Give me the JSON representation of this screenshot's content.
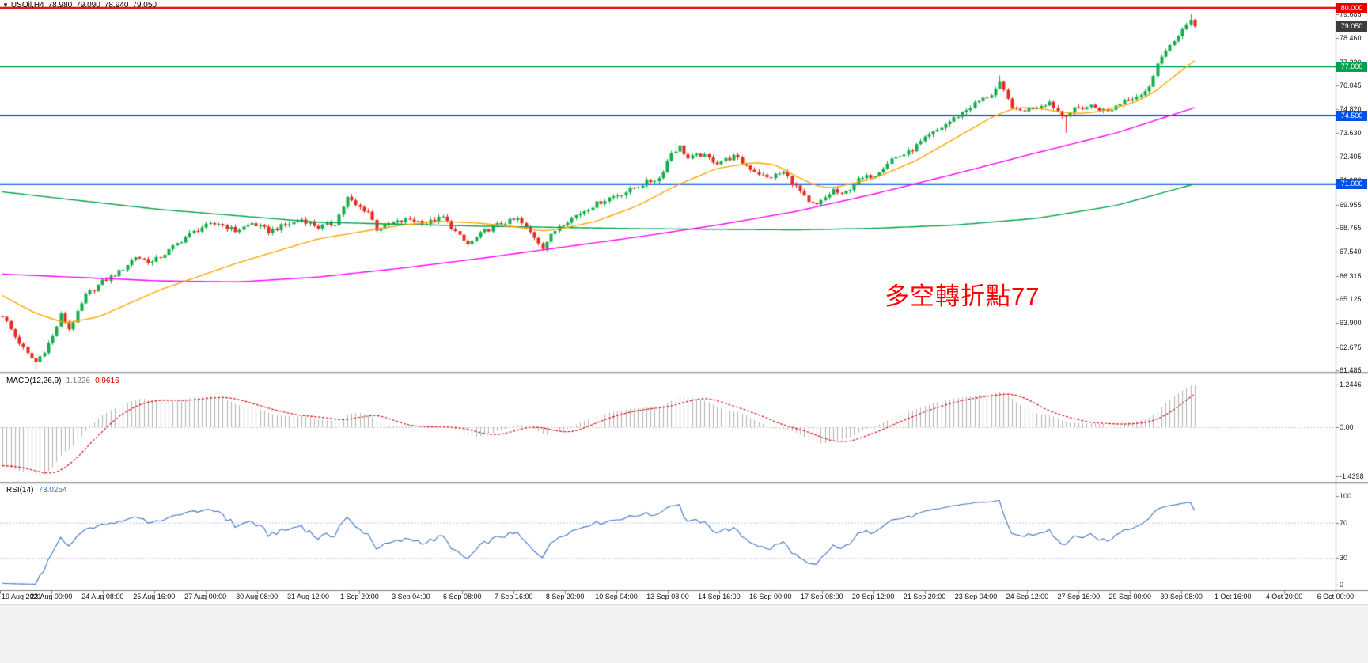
{
  "main_chart": {
    "title": {
      "collapse_icon": "▼",
      "symbol": "USOil,H4",
      "open": "78.980",
      "high": "79.090",
      "low": "78.940",
      "close": "79.050"
    },
    "annotation": {
      "text": "多空轉折點77",
      "color": "#ff0000"
    },
    "axis_labels": [
      {
        "text": "79.685",
        "price": 79.685
      },
      {
        "text": "78.460",
        "price": 78.46
      },
      {
        "text": "77.230",
        "price": 77.23
      },
      {
        "text": "76.045",
        "price": 76.045
      },
      {
        "text": "74.820",
        "price": 74.82
      },
      {
        "text": "73.630",
        "price": 73.63
      },
      {
        "text": "72.405",
        "price": 72.405
      },
      {
        "text": "71.180",
        "price": 71.18
      },
      {
        "text": "69.955",
        "price": 69.955
      },
      {
        "text": "68.765",
        "price": 68.765
      },
      {
        "text": "67.540",
        "price": 67.54
      },
      {
        "text": "66.315",
        "price": 66.315
      },
      {
        "text": "65.125",
        "price": 65.125
      },
      {
        "text": "63.900",
        "price": 63.9
      },
      {
        "text": "62.675",
        "price": 62.675
      },
      {
        "text": "61.485",
        "price": 61.485
      }
    ],
    "badges": [
      {
        "text": "80.000",
        "price": 80.0,
        "color": "#e60000"
      },
      {
        "text": "79.050",
        "price": 79.05,
        "color": "#3c3c3c"
      },
      {
        "text": "77.000",
        "price": 77.0,
        "color": "#00a24a"
      },
      {
        "text": "74.500",
        "price": 74.5,
        "color": "#0051e6"
      },
      {
        "text": "71.000",
        "price": 71.0,
        "color": "#0051e6"
      }
    ]
  },
  "macd_panel": {
    "name": "MACD(12,26,9)",
    "value_main": "1.1226",
    "value_signal": "0.9616",
    "axis": [
      {
        "text": "1.2446",
        "value": 1.2446
      },
      {
        "text": "0.00",
        "value": 0
      },
      {
        "text": "-1.4398",
        "value": -1.4398
      }
    ]
  },
  "rsi_panel": {
    "name": "RSI(14)",
    "value": "73.0254",
    "axis": [
      {
        "text": "100",
        "value": 100
      },
      {
        "text": "70",
        "value": 70
      },
      {
        "text": "30",
        "value": 30
      },
      {
        "text": "0",
        "value": 0
      }
    ]
  },
  "time_axis": {
    "labels": [
      "19 Aug 2021",
      "23 Aug 00:00",
      "24 Aug 08:00",
      "25 Aug 16:00",
      "27 Aug 00:00",
      "30 Aug 08:00",
      "31 Aug 12:00",
      "1 Sep 20:00",
      "3 Sep 04:00",
      "6 Sep 08:00",
      "7 Sep 16:00",
      "8 Sep 20:00",
      "10 Sep 04:00",
      "13 Sep 08:00",
      "14 Sep 16:00",
      "16 Sep 00:00",
      "17 Sep 08:00",
      "20 Sep 12:00",
      "21 Sep 20:00",
      "23 Sep 04:00",
      "24 Sep 12:00",
      "27 Sep 16:00",
      "29 Sep 00:00",
      "30 Sep 08:00",
      "1 Oct 16:00",
      "4 Oct 20:00",
      "6 Oct 00:00"
    ]
  },
  "chart_data": {
    "type": "candlestick",
    "symbol": "USOil",
    "timeframe": "H4",
    "visible_candles": 288,
    "price_axis": {
      "min": 61.485,
      "max": 80.0
    },
    "ohlc_current": {
      "open": 78.98,
      "high": 79.09,
      "low": 78.94,
      "close": 79.05
    },
    "up_color": "#13ad4c",
    "down_color": "#e8291c",
    "horizontal_lines": [
      {
        "price": 80.0,
        "color": "#e60000",
        "width": 2.5
      },
      {
        "price": 77.0,
        "color": "#00a24a",
        "width": 2
      },
      {
        "price": 74.5,
        "color": "#0051e6",
        "width": 2
      },
      {
        "price": 71.0,
        "color": "#0051e6",
        "width": 2
      }
    ],
    "close_keypoints": [
      [
        0,
        64.3
      ],
      [
        3,
        63.2
      ],
      [
        6,
        62.3
      ],
      [
        8,
        61.9
      ],
      [
        10,
        62.5
      ],
      [
        12,
        63.2
      ],
      [
        14,
        64.3
      ],
      [
        16,
        63.6
      ],
      [
        18,
        64.4
      ],
      [
        20,
        65.3
      ],
      [
        24,
        66.0
      ],
      [
        28,
        66.5
      ],
      [
        32,
        67.3
      ],
      [
        36,
        67.0
      ],
      [
        40,
        67.6
      ],
      [
        44,
        68.3
      ],
      [
        48,
        68.8
      ],
      [
        52,
        69.0
      ],
      [
        56,
        68.6
      ],
      [
        60,
        69.0
      ],
      [
        64,
        68.6
      ],
      [
        68,
        68.9
      ],
      [
        72,
        69.2
      ],
      [
        76,
        68.8
      ],
      [
        80,
        69.0
      ],
      [
        83,
        70.3
      ],
      [
        85,
        69.9
      ],
      [
        88,
        69.6
      ],
      [
        90,
        68.7
      ],
      [
        94,
        69.0
      ],
      [
        98,
        69.2
      ],
      [
        102,
        69.0
      ],
      [
        106,
        69.3
      ],
      [
        110,
        68.3
      ],
      [
        112,
        67.9
      ],
      [
        116,
        68.6
      ],
      [
        120,
        69.0
      ],
      [
        124,
        69.2
      ],
      [
        128,
        68.3
      ],
      [
        130,
        67.8
      ],
      [
        134,
        68.9
      ],
      [
        138,
        69.4
      ],
      [
        142,
        69.9
      ],
      [
        146,
        70.3
      ],
      [
        150,
        70.6
      ],
      [
        154,
        71.0
      ],
      [
        158,
        71.3
      ],
      [
        161,
        72.6
      ],
      [
        163,
        72.9
      ],
      [
        165,
        72.3
      ],
      [
        168,
        72.5
      ],
      [
        172,
        72.1
      ],
      [
        176,
        72.4
      ],
      [
        180,
        71.8
      ],
      [
        184,
        71.3
      ],
      [
        188,
        71.6
      ],
      [
        192,
        70.6
      ],
      [
        194,
        70.0
      ],
      [
        196,
        69.9
      ],
      [
        200,
        70.7
      ],
      [
        202,
        70.4
      ],
      [
        206,
        71.2
      ],
      [
        210,
        71.5
      ],
      [
        214,
        72.3
      ],
      [
        218,
        72.6
      ],
      [
        222,
        73.3
      ],
      [
        226,
        73.9
      ],
      [
        230,
        74.5
      ],
      [
        234,
        75.1
      ],
      [
        238,
        75.6
      ],
      [
        240,
        76.1
      ],
      [
        242,
        75.3
      ],
      [
        244,
        74.7
      ],
      [
        248,
        74.9
      ],
      [
        252,
        75.2
      ],
      [
        255,
        74.5
      ],
      [
        258,
        74.8
      ],
      [
        262,
        75.0
      ],
      [
        266,
        74.7
      ],
      [
        270,
        75.3
      ],
      [
        274,
        75.6
      ],
      [
        276,
        75.9
      ],
      [
        278,
        77.2
      ],
      [
        280,
        77.8
      ],
      [
        282,
        78.3
      ],
      [
        284,
        78.9
      ],
      [
        286,
        79.35
      ],
      [
        287,
        79.05
      ]
    ],
    "wick_events": [
      {
        "i": 8,
        "low": 61.5
      },
      {
        "i": 162,
        "high": 73.09
      },
      {
        "i": 240,
        "high": 76.55
      },
      {
        "i": 256,
        "low": 73.62
      },
      {
        "i": 286,
        "high": 79.68
      }
    ],
    "prehistory": {
      "bars": 45,
      "from": 71.2,
      "to": 64.3
    },
    "moving_averages": [
      {
        "name": "slow-ma",
        "color": "#00a24a",
        "points": [
          [
            0,
            70.6
          ],
          [
            38,
            69.7
          ],
          [
            76,
            69.05
          ],
          [
            115,
            68.85
          ],
          [
            153,
            68.72
          ],
          [
            191,
            68.66
          ],
          [
            210,
            68.74
          ],
          [
            229,
            68.9
          ],
          [
            249,
            69.25
          ],
          [
            268,
            69.9
          ],
          [
            287,
            71.0
          ]
        ]
      },
      {
        "name": "mid-ma",
        "color": "#ff00ff",
        "points": [
          [
            0,
            66.4
          ],
          [
            38,
            66.05
          ],
          [
            57,
            66.0
          ],
          [
            76,
            66.25
          ],
          [
            96,
            66.7
          ],
          [
            115,
            67.2
          ],
          [
            134,
            67.75
          ],
          [
            153,
            68.3
          ],
          [
            172,
            68.9
          ],
          [
            191,
            69.6
          ],
          [
            210,
            70.5
          ],
          [
            229,
            71.5
          ],
          [
            249,
            72.6
          ],
          [
            268,
            73.6
          ],
          [
            287,
            74.9
          ]
        ]
      },
      {
        "name": "fast-ma",
        "color": "#ffa500",
        "points": [
          [
            0,
            65.3
          ],
          [
            8,
            64.4
          ],
          [
            15,
            63.9
          ],
          [
            23,
            64.2
          ],
          [
            38,
            65.6
          ],
          [
            57,
            67.0
          ],
          [
            76,
            68.2
          ],
          [
            96,
            68.9
          ],
          [
            105,
            69.1
          ],
          [
            115,
            69.0
          ],
          [
            124,
            68.8
          ],
          [
            130,
            68.6
          ],
          [
            134,
            68.7
          ],
          [
            143,
            69.1
          ],
          [
            153,
            69.9
          ],
          [
            162,
            70.9
          ],
          [
            172,
            71.8
          ],
          [
            181,
            72.1
          ],
          [
            186,
            72.0
          ],
          [
            191,
            71.4
          ],
          [
            196,
            70.9
          ],
          [
            200,
            70.8
          ],
          [
            210,
            71.3
          ],
          [
            220,
            72.2
          ],
          [
            229,
            73.3
          ],
          [
            239,
            74.5
          ],
          [
            244,
            74.9
          ],
          [
            249,
            74.9
          ],
          [
            254,
            74.7
          ],
          [
            259,
            74.6
          ],
          [
            264,
            74.7
          ],
          [
            268,
            74.9
          ],
          [
            273,
            75.2
          ],
          [
            278,
            75.8
          ],
          [
            282,
            76.5
          ],
          [
            287,
            77.3
          ]
        ]
      }
    ],
    "macd": {
      "fast": 12,
      "slow": 26,
      "signal": 9,
      "current_macd": 1.1226,
      "current_signal": 0.9616,
      "axis_max": 1.2446,
      "axis_min": -1.4398,
      "histogram_color": "#b2b2b2",
      "signal_color": "#d40000"
    },
    "rsi": {
      "period": 14,
      "current": 73.0254,
      "levels": [
        70,
        30
      ],
      "line_color": "#3e73c8",
      "level_color": "#b9c0d8"
    }
  }
}
